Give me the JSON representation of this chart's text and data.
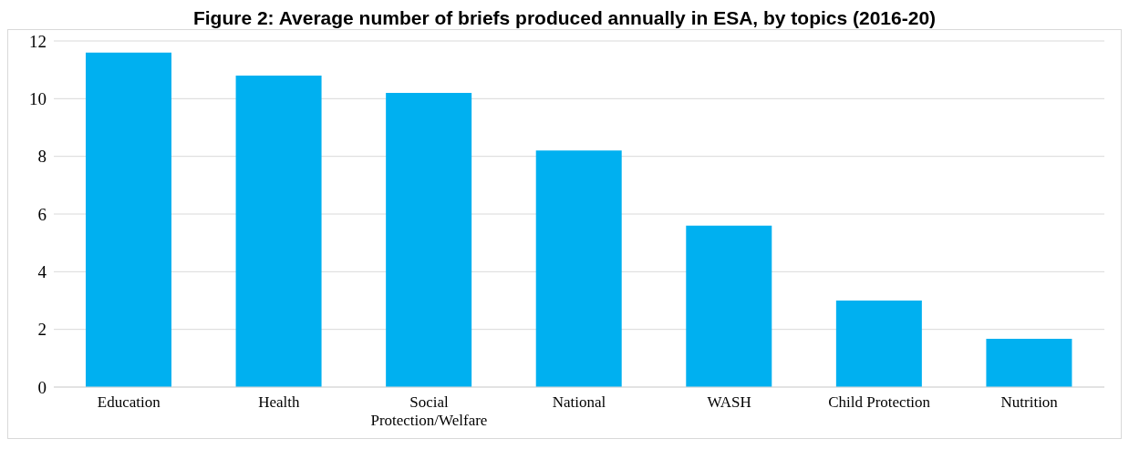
{
  "chart_data": {
    "type": "bar",
    "title": "Figure 2: Average number of briefs produced annually in ESA, by topics (2016-20)",
    "categories": [
      "Education",
      "Health",
      "Social Protection/Welfare",
      "National",
      "WASH",
      "Child Protection",
      "Nutrition"
    ],
    "values": [
      11.6,
      10.8,
      10.2,
      8.2,
      5.6,
      3.0,
      1.67
    ],
    "color": "#00b0f0",
    "ylim": [
      0,
      12
    ],
    "yticks": [
      0,
      2,
      4,
      6,
      8,
      10,
      12
    ],
    "grid": "y"
  }
}
